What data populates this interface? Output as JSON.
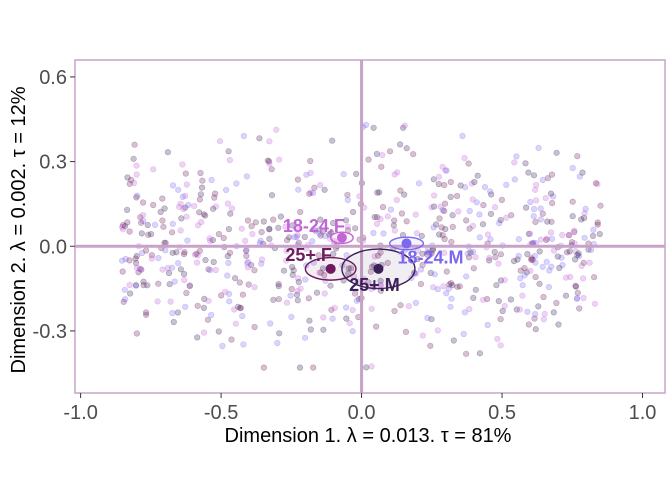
{
  "chart_data": {
    "type": "scatter",
    "title": "",
    "xlabel": "Dimension 1.   λ = 0.013.  τ = 81%",
    "ylabel": "Dimension 2.   λ = 0.002.  τ = 12%",
    "xlim": [
      -1.02,
      1.08
    ],
    "ylim": [
      -0.52,
      0.66
    ],
    "x_ticks": [
      -1.0,
      -0.5,
      0.0,
      0.5,
      1.0
    ],
    "x_tick_labels": [
      "-1.0",
      "-0.5",
      "0.0",
      "0.5",
      "1.0"
    ],
    "y_ticks": [
      -0.3,
      0.0,
      0.3,
      0.6
    ],
    "y_tick_labels": [
      "-0.3",
      "0.0",
      "0.3",
      "0.6"
    ],
    "grid": false,
    "reference_lines": {
      "x": 0,
      "y": 0,
      "color": "#c8a2c8"
    },
    "frame_color": "#c8a2c8",
    "group_colors": {
      "18-24.F": "#c266d6",
      "18-24.M": "#7b68ee",
      "25+.F": "#6e1c5f",
      "25+.M": "#3b2158"
    },
    "categories": [
      {
        "name": "18-24.F",
        "x": -0.07,
        "y": 0.03,
        "ell_rx": 0.04,
        "ell_ry": 0.02,
        "label": "18-24.F"
      },
      {
        "name": "18-24.M",
        "x": 0.16,
        "y": 0.01,
        "ell_rx": 0.06,
        "ell_ry": 0.022,
        "label": "18-24.M"
      },
      {
        "name": "25+.F",
        "x": -0.11,
        "y": -0.08,
        "ell_rx": 0.09,
        "ell_ry": 0.04,
        "label": "25+.F"
      },
      {
        "name": "25+.M",
        "x": 0.06,
        "y": -0.08,
        "ell_rx": 0.13,
        "ell_ry": 0.07,
        "label": "25+.M"
      }
    ],
    "point_cloud": {
      "count": 700,
      "x_range": [
        -0.9,
        0.9
      ],
      "y_range": [
        -0.43,
        0.43
      ],
      "note": "individual row points, semi-transparent, colored by group"
    }
  }
}
